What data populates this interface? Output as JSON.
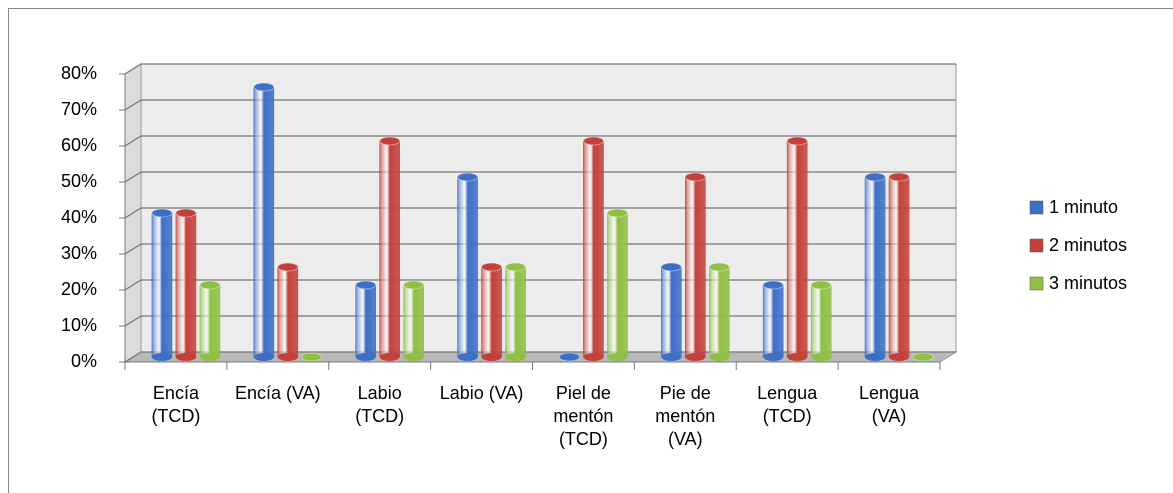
{
  "chart_data": {
    "type": "bar3d",
    "categories": [
      "Encía (TCD)",
      "Encía (VA)",
      "Labio (TCD)",
      "Labio (VA)",
      "Piel de mentón (TCD)",
      "Pie de mentón (VA)",
      "Lengua (TCD)",
      "Lengua (VA)"
    ],
    "series": [
      {
        "name": "1 minuto",
        "color": "#3d6fc6",
        "values": [
          40,
          75,
          20,
          50,
          0,
          25,
          20,
          50
        ]
      },
      {
        "name": "2 minutos",
        "color": "#c4413b",
        "values": [
          40,
          25,
          60,
          25,
          60,
          50,
          60,
          50
        ]
      },
      {
        "name": "3 minutos",
        "color": "#8fc043",
        "values": [
          20,
          0,
          20,
          25,
          40,
          25,
          20,
          0
        ]
      }
    ],
    "ylim": [
      0,
      80
    ],
    "yticks": [
      {
        "value": 0,
        "label": "0%"
      },
      {
        "value": 10,
        "label": "10%"
      },
      {
        "value": 20,
        "label": "20%"
      },
      {
        "value": 30,
        "label": "30%"
      },
      {
        "value": 40,
        "label": "40%"
      },
      {
        "value": 50,
        "label": "50%"
      },
      {
        "value": 60,
        "label": "60%"
      },
      {
        "value": 70,
        "label": "70%"
      },
      {
        "value": 80,
        "label": "80%"
      }
    ],
    "grid": true,
    "legend": "right"
  }
}
